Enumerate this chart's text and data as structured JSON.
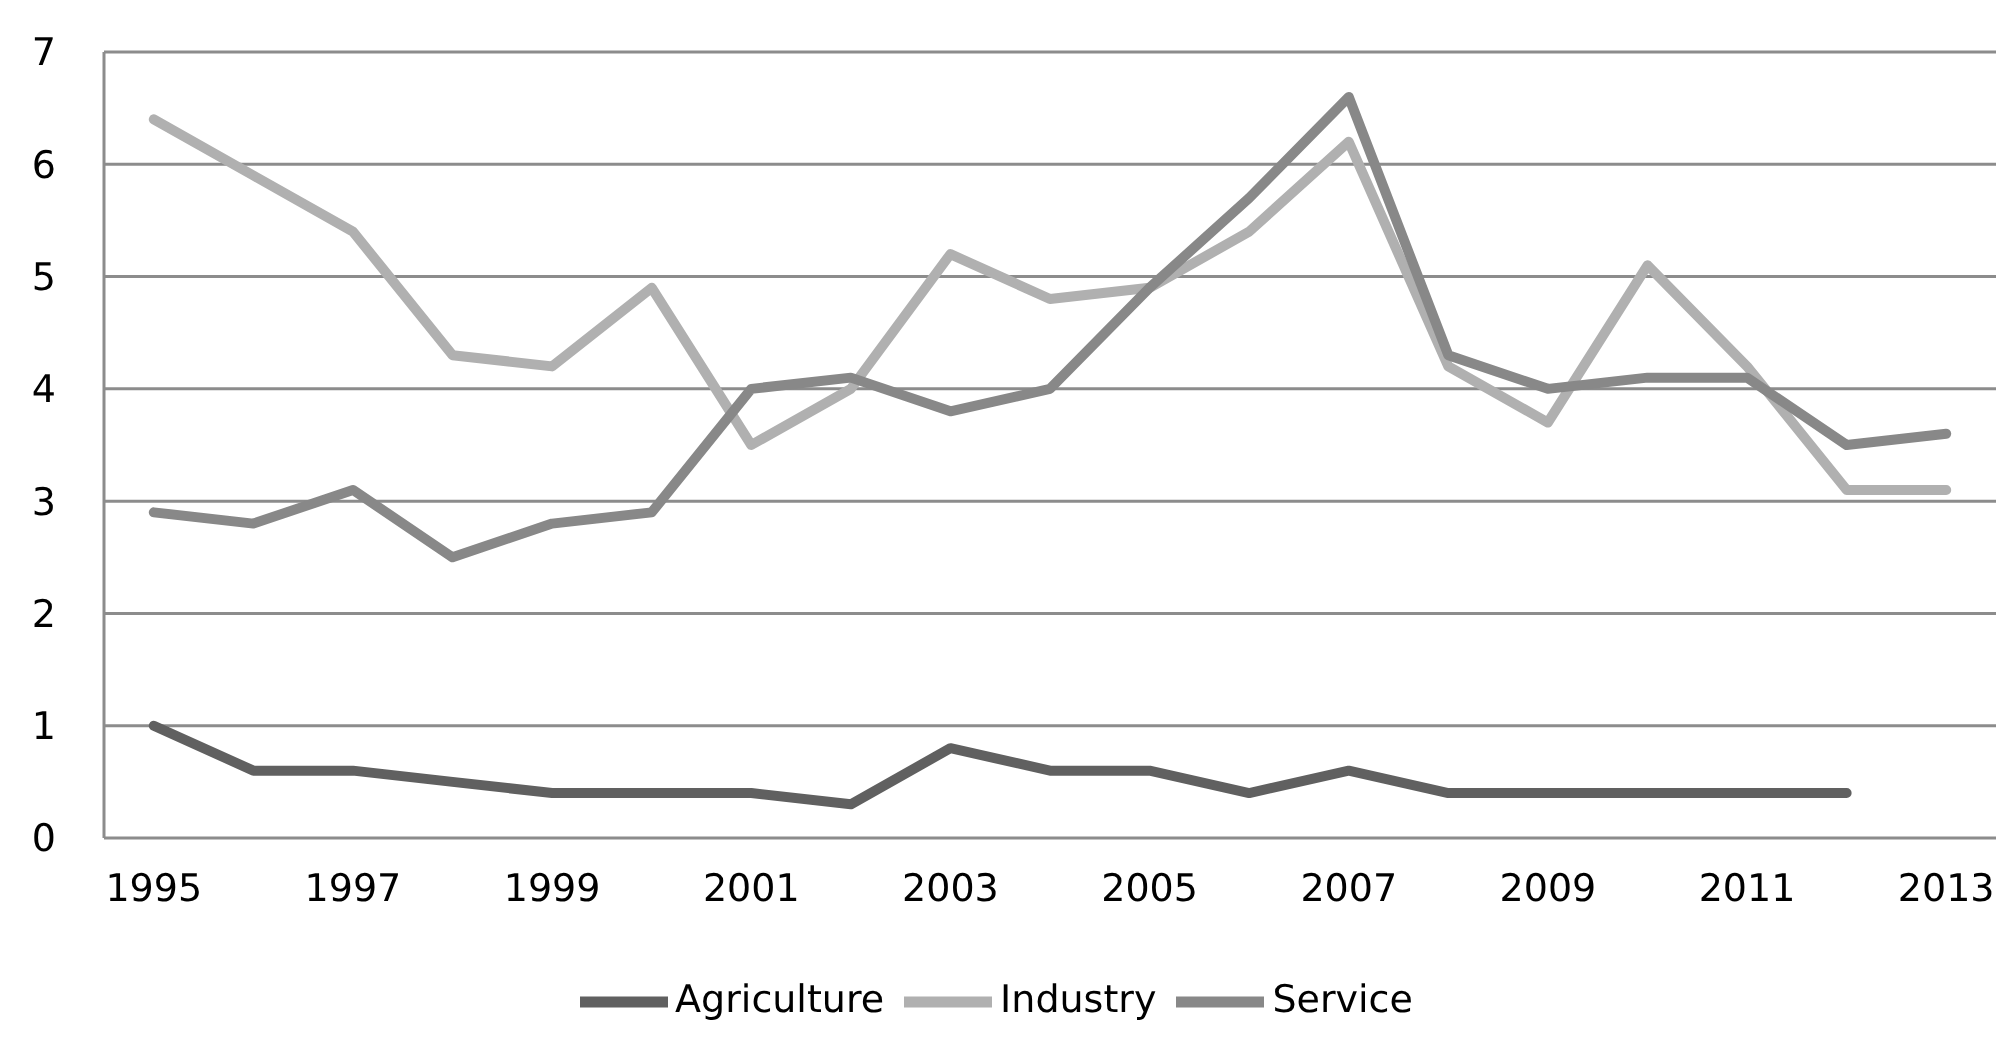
{
  "chart_data": {
    "type": "line",
    "x": [
      1995,
      1996,
      1997,
      1998,
      1999,
      2000,
      2001,
      2002,
      2003,
      2004,
      2005,
      2006,
      2007,
      2008,
      2009,
      2010,
      2011,
      2012,
      2013
    ],
    "series": [
      {
        "name": "Agriculture",
        "color": "#606060",
        "values": [
          1.0,
          0.6,
          0.6,
          0.5,
          0.4,
          0.4,
          0.4,
          0.3,
          0.8,
          0.6,
          0.6,
          0.4,
          0.6,
          0.4,
          0.4,
          0.4,
          0.4,
          0.4,
          null
        ]
      },
      {
        "name": "Industry",
        "color": "#b0b0b0",
        "values": [
          6.4,
          5.9,
          5.4,
          4.3,
          4.2,
          4.9,
          3.5,
          4.0,
          5.2,
          4.8,
          4.9,
          5.4,
          6.2,
          4.2,
          3.7,
          5.1,
          4.2,
          3.1,
          3.1
        ]
      },
      {
        "name": "Service",
        "color": "#888888",
        "values": [
          2.9,
          2.8,
          3.1,
          2.5,
          2.8,
          2.9,
          4.0,
          4.1,
          3.8,
          4.0,
          4.9,
          5.7,
          6.6,
          4.3,
          4.0,
          4.1,
          4.1,
          3.5,
          3.6
        ]
      }
    ],
    "xlim": [
      1994.5,
      2013.5
    ],
    "xticks": [
      1995,
      1997,
      1999,
      2001,
      2003,
      2005,
      2007,
      2009,
      2011,
      2013
    ],
    "ylim": [
      0,
      7
    ],
    "yticks": [
      0,
      1,
      2,
      3,
      4,
      5,
      6,
      7
    ],
    "grid": "y",
    "legend": "bottom",
    "marker": "none",
    "line_style": "solid"
  }
}
